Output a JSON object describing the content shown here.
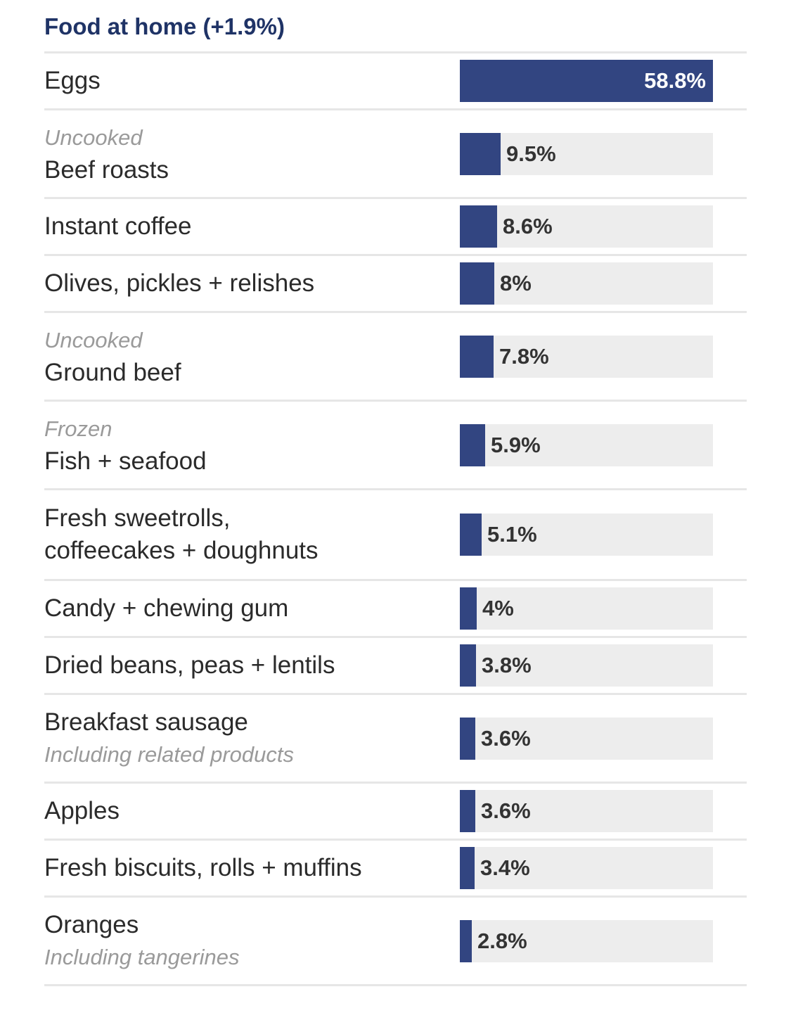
{
  "chart_data": {
    "type": "bar",
    "title": "Food at home (+1.9%)",
    "unit": "%",
    "xlim": [
      0,
      58.8
    ],
    "colors": {
      "bar": "#324581",
      "track": "#ededed",
      "title": "#1f3366"
    },
    "rows": [
      {
        "name": "Eggs",
        "note": "",
        "note_position": "none",
        "value": 58.8,
        "value_label": "58.8%"
      },
      {
        "name": "Beef roasts",
        "note": "Uncooked",
        "note_position": "above",
        "value": 9.5,
        "value_label": "9.5%"
      },
      {
        "name": "Instant coffee",
        "note": "",
        "note_position": "none",
        "value": 8.6,
        "value_label": "8.6%"
      },
      {
        "name": "Olives, pickles + relishes",
        "note": "",
        "note_position": "none",
        "value": 8,
        "value_label": "8%"
      },
      {
        "name": "Ground beef",
        "note": "Uncooked",
        "note_position": "above",
        "value": 7.8,
        "value_label": "7.8%"
      },
      {
        "name": "Fish + seafood",
        "note": "Frozen",
        "note_position": "above",
        "value": 5.9,
        "value_label": "5.9%"
      },
      {
        "name": "Fresh sweetrolls,\ncoffeecakes + doughnuts",
        "note": "",
        "note_position": "none",
        "value": 5.1,
        "value_label": "5.1%"
      },
      {
        "name": "Candy + chewing gum",
        "note": "",
        "note_position": "none",
        "value": 4,
        "value_label": "4%"
      },
      {
        "name": "Dried beans, peas + lentils",
        "note": "",
        "note_position": "none",
        "value": 3.8,
        "value_label": "3.8%"
      },
      {
        "name": "Breakfast sausage",
        "note": "Including related products",
        "note_position": "below",
        "value": 3.6,
        "value_label": "3.6%"
      },
      {
        "name": "Apples",
        "note": "",
        "note_position": "none",
        "value": 3.6,
        "value_label": "3.6%"
      },
      {
        "name": "Fresh biscuits, rolls + muffins",
        "note": "",
        "note_position": "none",
        "value": 3.4,
        "value_label": "3.4%"
      },
      {
        "name": "Oranges",
        "note": "Including tangerines",
        "note_position": "below",
        "value": 2.8,
        "value_label": "2.8%"
      }
    ]
  }
}
